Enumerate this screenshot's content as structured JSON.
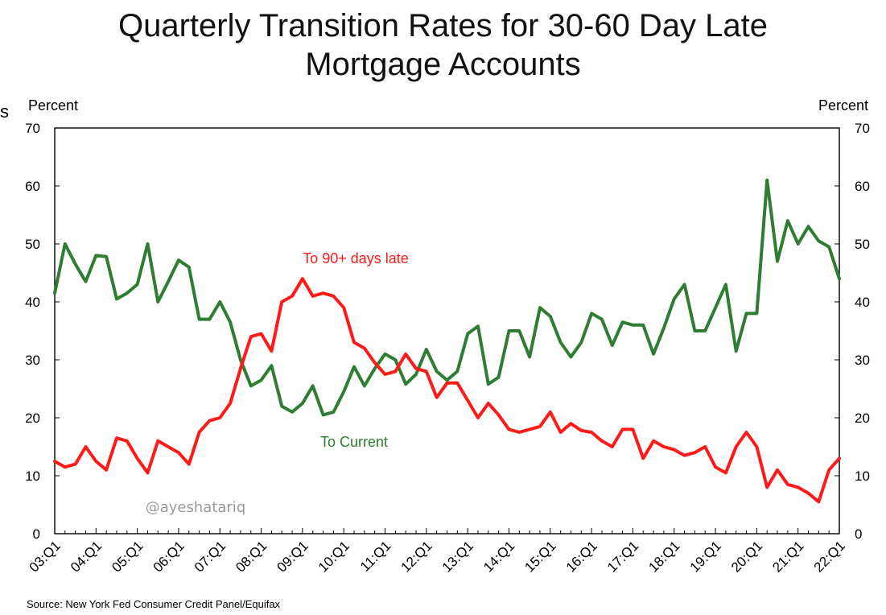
{
  "page": {
    "title_line1": "Quarterly Transition Rates for 30-60 Day Late",
    "title_line2": "Mortgage Accounts",
    "left_unit": "Percent",
    "right_unit": "Percent",
    "source": "Source: New York Fed Consumer Credit Panel/Equifax",
    "watermark": "@ayeshatariq",
    "edge_mark": "s"
  },
  "chart_data": {
    "type": "line",
    "title": "Quarterly Transition Rates for 30-60 Day Late Mortgage Accounts",
    "ylabel": "Percent",
    "ylim": [
      0,
      70
    ],
    "yticks": [
      0,
      10,
      20,
      30,
      40,
      50,
      60,
      70
    ],
    "xtick_labels": [
      "03:Q1",
      "04:Q1",
      "05:Q1",
      "06:Q1",
      "07:Q1",
      "08:Q1",
      "09:Q1",
      "10:Q1",
      "11:Q1",
      "12:Q1",
      "13:Q1",
      "14:Q1",
      "15:Q1",
      "16:Q1",
      "17:Q1",
      "18:Q1",
      "19:Q1",
      "20:Q1",
      "21:Q1",
      "22:Q1"
    ],
    "grid": false,
    "series": [
      {
        "name": "To Current",
        "color": "#2e7d32",
        "values": [
          41.5,
          50.0,
          46.5,
          43.5,
          48.0,
          47.8,
          40.5,
          41.5,
          43.0,
          50.0,
          40.0,
          43.5,
          47.2,
          46.0,
          37.0,
          37.0,
          40.0,
          36.5,
          30.0,
          25.5,
          26.5,
          29.0,
          22.0,
          21.0,
          22.5,
          25.5,
          20.5,
          21.0,
          24.5,
          28.8,
          25.5,
          28.5,
          31.0,
          30.0,
          25.8,
          27.5,
          31.8,
          28.0,
          26.5,
          28.0,
          34.5,
          35.8,
          25.8,
          27.0,
          35.0,
          35.0,
          30.5,
          39.0,
          37.5,
          33.0,
          30.5,
          33.0,
          38.0,
          37.0,
          32.5,
          36.5,
          36.0,
          36.0,
          31.0,
          35.5,
          40.5,
          43.0,
          35.0,
          35.0,
          39.0,
          43.0,
          31.5,
          38.0,
          38.0,
          61.0,
          47.0,
          54.0,
          50.0,
          53.0,
          50.5,
          49.5,
          44.0
        ]
      },
      {
        "name": "To 90+ days late",
        "color": "#ff1a1a",
        "values": [
          12.5,
          11.5,
          12.0,
          15.0,
          12.5,
          11.0,
          16.5,
          16.0,
          13.0,
          10.5,
          16.0,
          15.0,
          14.0,
          12.0,
          17.5,
          19.5,
          20.0,
          22.5,
          28.5,
          34.0,
          34.5,
          31.5,
          40.0,
          41.0,
          44.0,
          41.0,
          41.5,
          41.0,
          39.0,
          33.0,
          32.0,
          29.5,
          27.5,
          28.0,
          31.0,
          28.5,
          28.0,
          23.5,
          26.0,
          26.0,
          23.0,
          20.0,
          22.5,
          20.5,
          18.0,
          17.5,
          18.0,
          18.5,
          21.0,
          17.5,
          19.0,
          17.8,
          17.5,
          16.0,
          15.0,
          18.0,
          18.0,
          13.0,
          16.0,
          15.0,
          14.5,
          13.5,
          14.0,
          15.0,
          11.5,
          10.5,
          15.0,
          17.5,
          15.0,
          8.0,
          11.0,
          8.5,
          8.0,
          7.0,
          5.5,
          11.0,
          13.0
        ]
      }
    ],
    "annotations": [
      {
        "text": "To 90+ days late",
        "series": "To 90+ days late"
      },
      {
        "text": "To Current",
        "series": "To Current"
      }
    ]
  }
}
